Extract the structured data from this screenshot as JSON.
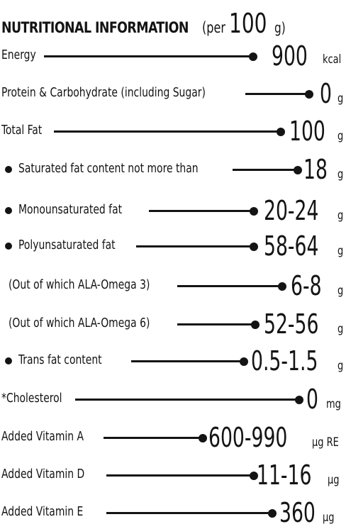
{
  "header": {
    "title": "NUTRITIONAL INFORMATION",
    "per_prefix": "(per",
    "per_amount": "100",
    "per_unit": "g)"
  },
  "rows": [
    {
      "label": "Energy",
      "value": "900",
      "unit": "kcal"
    },
    {
      "label": "Protein & Carbohydrate (including Sugar)",
      "value": "0",
      "unit": "g"
    },
    {
      "label": "Total Fat",
      "value": "100",
      "unit": "g"
    },
    {
      "label": "Saturated fat content not more than",
      "value": "18",
      "unit": "g"
    },
    {
      "label": "Monounsaturated fat",
      "value": "20-24",
      "unit": "g"
    },
    {
      "label": "Polyunsaturated fat",
      "value": "58-64",
      "unit": "g"
    },
    {
      "label": "(Out of which ALA-Omega 3)",
      "value": "6-8",
      "unit": "g"
    },
    {
      "label": "(Out of which ALA-Omega 6)",
      "value": "52-56",
      "unit": "g"
    },
    {
      "label": "Trans fat content",
      "value": "0.5-1.5",
      "unit": "g"
    },
    {
      "label": "*Cholesterol",
      "value": "0",
      "unit": "mg"
    },
    {
      "label": "Added Vitamin  A",
      "value": "600-990",
      "unit": "µg RE"
    },
    {
      "label": "Added Vitamin  D",
      "value": "11-16",
      "unit": "µg"
    },
    {
      "label": "Added Vitamin  E",
      "value": "360",
      "unit": "µg"
    }
  ]
}
